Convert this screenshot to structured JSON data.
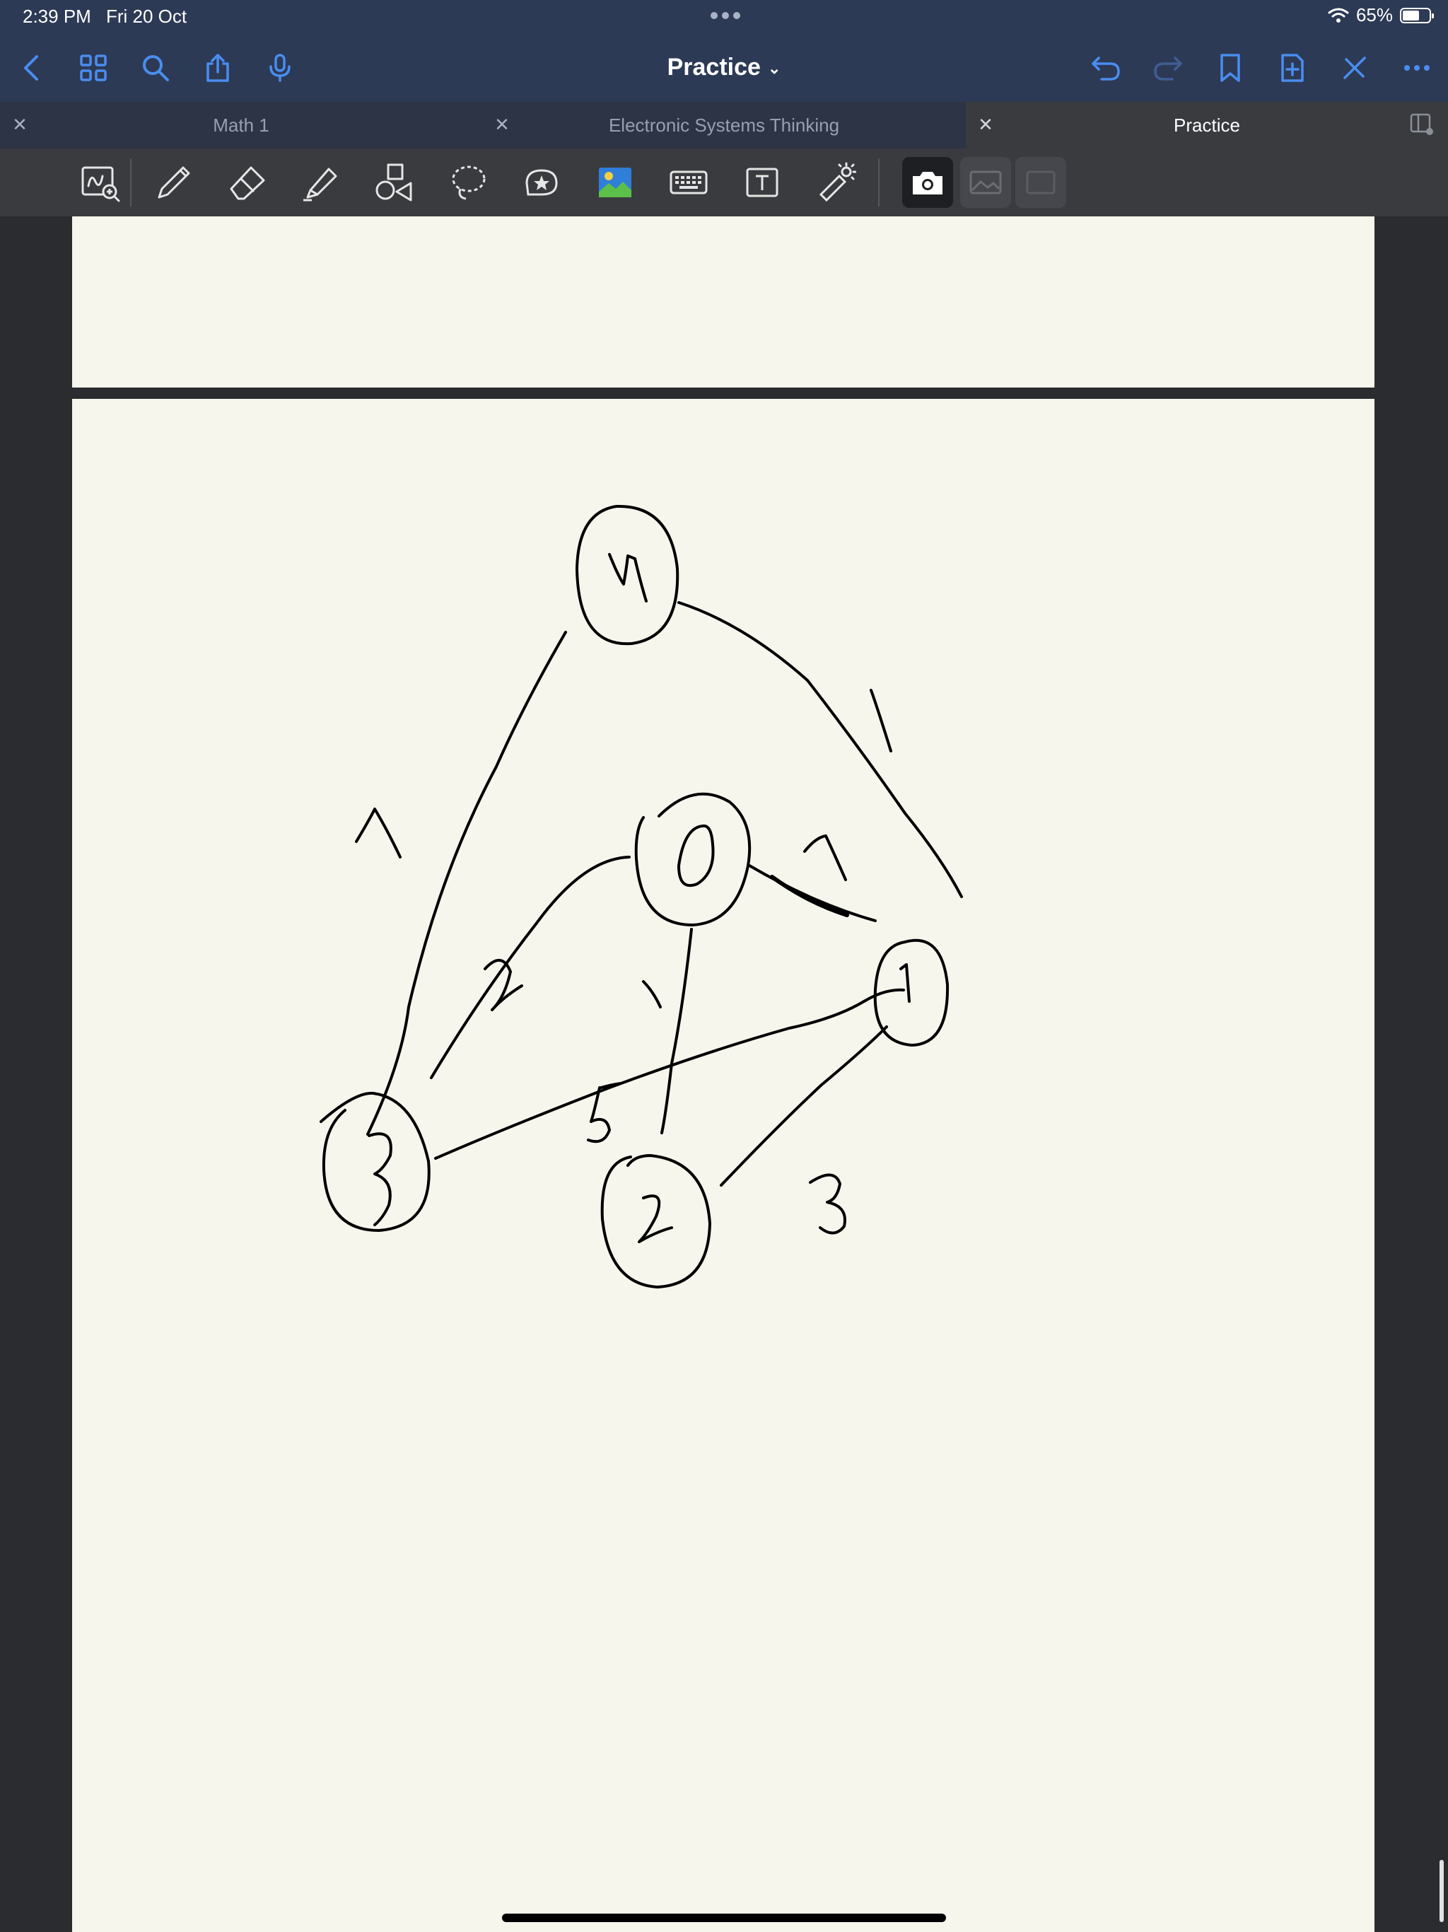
{
  "status": {
    "time": "2:39 PM",
    "date": "Fri 20 Oct",
    "battery_text": "65%",
    "battery_level": 0.65
  },
  "nav": {
    "title": "Practice",
    "accent_color": "#4a8df0"
  },
  "tabs": [
    {
      "label": "Math 1"
    },
    {
      "label": "Electronic Systems Thinking"
    },
    {
      "label": "Practice"
    }
  ],
  "toolbar": {
    "tools": [
      "zoom-box-icon",
      "pen-icon",
      "eraser-icon",
      "highlighter-icon",
      "shapes-icon",
      "lasso-icon",
      "elements-icon",
      "image-icon",
      "keyboard-icon",
      "text-box-icon",
      "laser-pointer-icon",
      "camera-icon",
      "photo-library-icon",
      "scan-icon"
    ]
  },
  "note": {
    "graph_nodes": [
      "4",
      "0",
      "1",
      "3",
      "2"
    ],
    "edge_weights": [
      "1",
      "1",
      "2",
      "1",
      "5",
      "3",
      "1"
    ]
  },
  "colors": {
    "bar_background": "#2d3a55",
    "paper": "#f6f6ec",
    "toolbar": "#3a3b3f",
    "ink": "#000000"
  }
}
